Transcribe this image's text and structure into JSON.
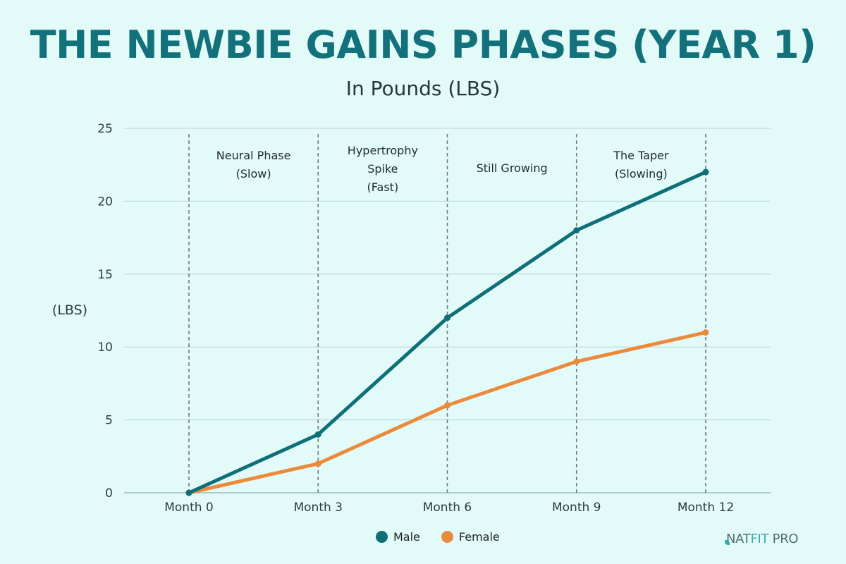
{
  "header": {
    "title": "THE NEWBIE GAINS PHASES (YEAR 1)",
    "subtitle": "In Pounds (LBS)"
  },
  "colors": {
    "background": "#e2fbf8",
    "title": "#12717a",
    "male": "#0f6f78",
    "female": "#ec8a3c",
    "grid": "#b7d3d3",
    "phase_divider": "#6d7b7e"
  },
  "chart_data": {
    "type": "line",
    "title": "THE NEWBIE GAINS PHASES (YEAR 1)",
    "subtitle": "In Pounds (LBS)",
    "xlabel": "",
    "ylabel": "(LBS)",
    "categories": [
      "Month 0",
      "Month 3",
      "Month 6",
      "Month 9",
      "Month 12"
    ],
    "series": [
      {
        "name": "Male",
        "color": "#0f6f78",
        "values": [
          0,
          4,
          12,
          18,
          22
        ]
      },
      {
        "name": "Female",
        "color": "#ec8a3c",
        "values": [
          0,
          2,
          6,
          9,
          11
        ]
      }
    ],
    "ylim": [
      0,
      25
    ],
    "yticks": [
      0,
      5,
      10,
      15,
      20,
      25
    ],
    "grid": true,
    "legend_position": "bottom",
    "annotations": [
      {
        "label": "Neural Phase (Slow)",
        "lines": [
          "Neural Phase",
          "(Slow)"
        ],
        "range": [
          "Month 0",
          "Month 3"
        ]
      },
      {
        "label": "Hypertrophy Spike (Fast)",
        "lines": [
          "Hypertrophy",
          "Spike",
          "(Fast)"
        ],
        "range": [
          "Month 3",
          "Month 6"
        ]
      },
      {
        "label": "Still Growing",
        "lines": [
          "Still Growing"
        ],
        "range": [
          "Month 6",
          "Month 9"
        ]
      },
      {
        "label": "The Taper (Slowing)",
        "lines": [
          "The Taper",
          "(Slowing)"
        ],
        "range": [
          "Month 9",
          "Month 12"
        ]
      }
    ]
  },
  "legend": {
    "items": [
      {
        "label": "Male",
        "color": "#0f6f78"
      },
      {
        "label": "Female",
        "color": "#ec8a3c"
      }
    ]
  },
  "brand": {
    "part1": "NAT",
    "part2": "FIT",
    "part3": " PRO"
  }
}
